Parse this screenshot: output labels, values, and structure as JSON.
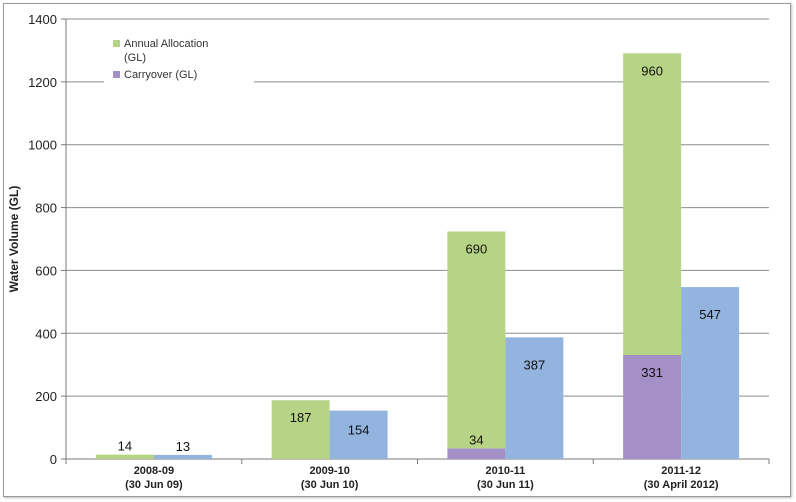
{
  "chart_data": {
    "type": "bar",
    "stacked": true,
    "ylabel": "Water Volume (GL)",
    "ylim": [
      0,
      1400
    ],
    "yticks": [
      0,
      200,
      400,
      600,
      800,
      1000,
      1200,
      1400
    ],
    "grid": true,
    "legend_position": "top-left",
    "categories": [
      {
        "line1": "2008-09",
        "line2": "(30 Jun 09)"
      },
      {
        "line1": "2009-10",
        "line2": "(30 Jun 10)"
      },
      {
        "line1": "2010-11",
        "line2": "(30 Jun 11)"
      },
      {
        "line1": "2011-12",
        "line2": "(30 April 2012)"
      }
    ],
    "stack_series": [
      {
        "name": "Carryover (GL)",
        "color": "#a48fc6",
        "values": [
          0,
          0,
          34,
          331
        ],
        "labels": [
          "",
          "",
          "34",
          "331"
        ]
      },
      {
        "name": "Annual Allocation (GL)",
        "color": "#b7d486",
        "values": [
          14,
          187,
          690,
          960
        ],
        "labels": [
          "14",
          "187",
          "690",
          "960"
        ]
      }
    ],
    "side_series": {
      "color": "#92b4de",
      "values": [
        13,
        154,
        387,
        547
      ],
      "labels": [
        "13",
        "154",
        "387",
        "547"
      ]
    },
    "legend": [
      {
        "line1": "Annual Allocation",
        "line2": "(GL)",
        "color": "#b7d486"
      },
      {
        "line1": "Carryover (GL)",
        "line2": "",
        "color": "#a48fc6"
      }
    ]
  }
}
